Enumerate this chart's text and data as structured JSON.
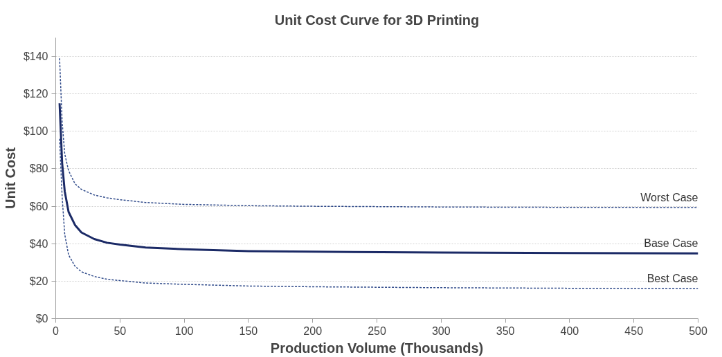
{
  "chart_data": {
    "type": "line",
    "title": "Unit Cost Curve for 3D Printing",
    "xlabel": "Production Volume (Thousands)",
    "ylabel": "Unit Cost",
    "xlim": [
      0,
      500
    ],
    "ylim": [
      0,
      150
    ],
    "xticks": [
      0,
      50,
      100,
      150,
      200,
      250,
      300,
      350,
      400,
      450,
      500
    ],
    "yticks": [
      {
        "value": 0,
        "label": "$0"
      },
      {
        "value": 20,
        "label": "$20"
      },
      {
        "value": 40,
        "label": "$40"
      },
      {
        "value": 60,
        "label": "$60"
      },
      {
        "value": 80,
        "label": "$80"
      },
      {
        "value": 100,
        "label": "$100"
      },
      {
        "value": 120,
        "label": "$120"
      },
      {
        "value": 140,
        "label": "$140"
      }
    ],
    "grid": "y",
    "marker": "none",
    "x": [
      3,
      5,
      7,
      10,
      15,
      20,
      30,
      40,
      50,
      70,
      100,
      150,
      200,
      300,
      400,
      500
    ],
    "series": [
      {
        "name": "Worst Case",
        "color": "#2f4a8a",
        "line_style": "dashed",
        "values": [
          139,
          105,
          88,
          79,
          72,
          69,
          66,
          64.5,
          63.5,
          62,
          61,
          60.3,
          60,
          59.6,
          59.4,
          59.3
        ]
      },
      {
        "name": "Base Case",
        "color": "#1b2a66",
        "line_style": "solid",
        "values": [
          115,
          83,
          68,
          57,
          50,
          46,
          42.5,
          40.5,
          39.5,
          38,
          37,
          36,
          35.7,
          35.3,
          35,
          34.8
        ]
      },
      {
        "name": "Best Case",
        "color": "#2f4a8a",
        "line_style": "dashed",
        "values": [
          96,
          65,
          45,
          34,
          28,
          25,
          22.5,
          21,
          20.3,
          19,
          18.3,
          17.4,
          17,
          16.5,
          16.2,
          16
        ]
      }
    ]
  }
}
